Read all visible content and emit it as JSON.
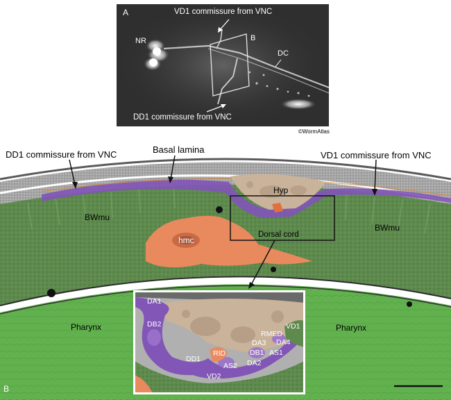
{
  "panel_a": {
    "letter": "A",
    "labels": {
      "vd1": "VD1 commissure from VNC",
      "nr": "NR",
      "b": "B",
      "dc": "DC",
      "dd1": "DD1 commissure from VNC"
    },
    "credit": "©WormAtlas"
  },
  "panel_b": {
    "letter": "B",
    "labels": {
      "dd1": "DD1 commissure from VNC",
      "basal_lamina": "Basal lamina",
      "vd1": "VD1 commissure from VNC",
      "hyp": "Hyp",
      "bwmu_left": "BWmu",
      "bwmu_right": "BWmu",
      "dorsal_cord": "Dorsal cord",
      "hmc": "hmc",
      "pharynx_left": "Pharynx",
      "pharynx_right": "Pharynx"
    },
    "inset_labels": {
      "da1": "DA1",
      "db2": "DB2",
      "dd1": "DD1",
      "rid": "RID",
      "as2": "AS2",
      "vd2": "VD2",
      "da2": "DA2",
      "db1": "DB1",
      "da3": "DA3",
      "rmed": "RMED",
      "vd1": "VD1",
      "da4": "DA4",
      "as1": "AS1"
    }
  },
  "colors": {
    "muscle_green": "#5e8a4e",
    "pharynx_green": "#62b14f",
    "hypodermis_tan": "#c9b39a",
    "neuron_purple": "#8156b6",
    "hmc_orange": "#e98a5e",
    "cuticle_gray": "#9a9a9a"
  }
}
